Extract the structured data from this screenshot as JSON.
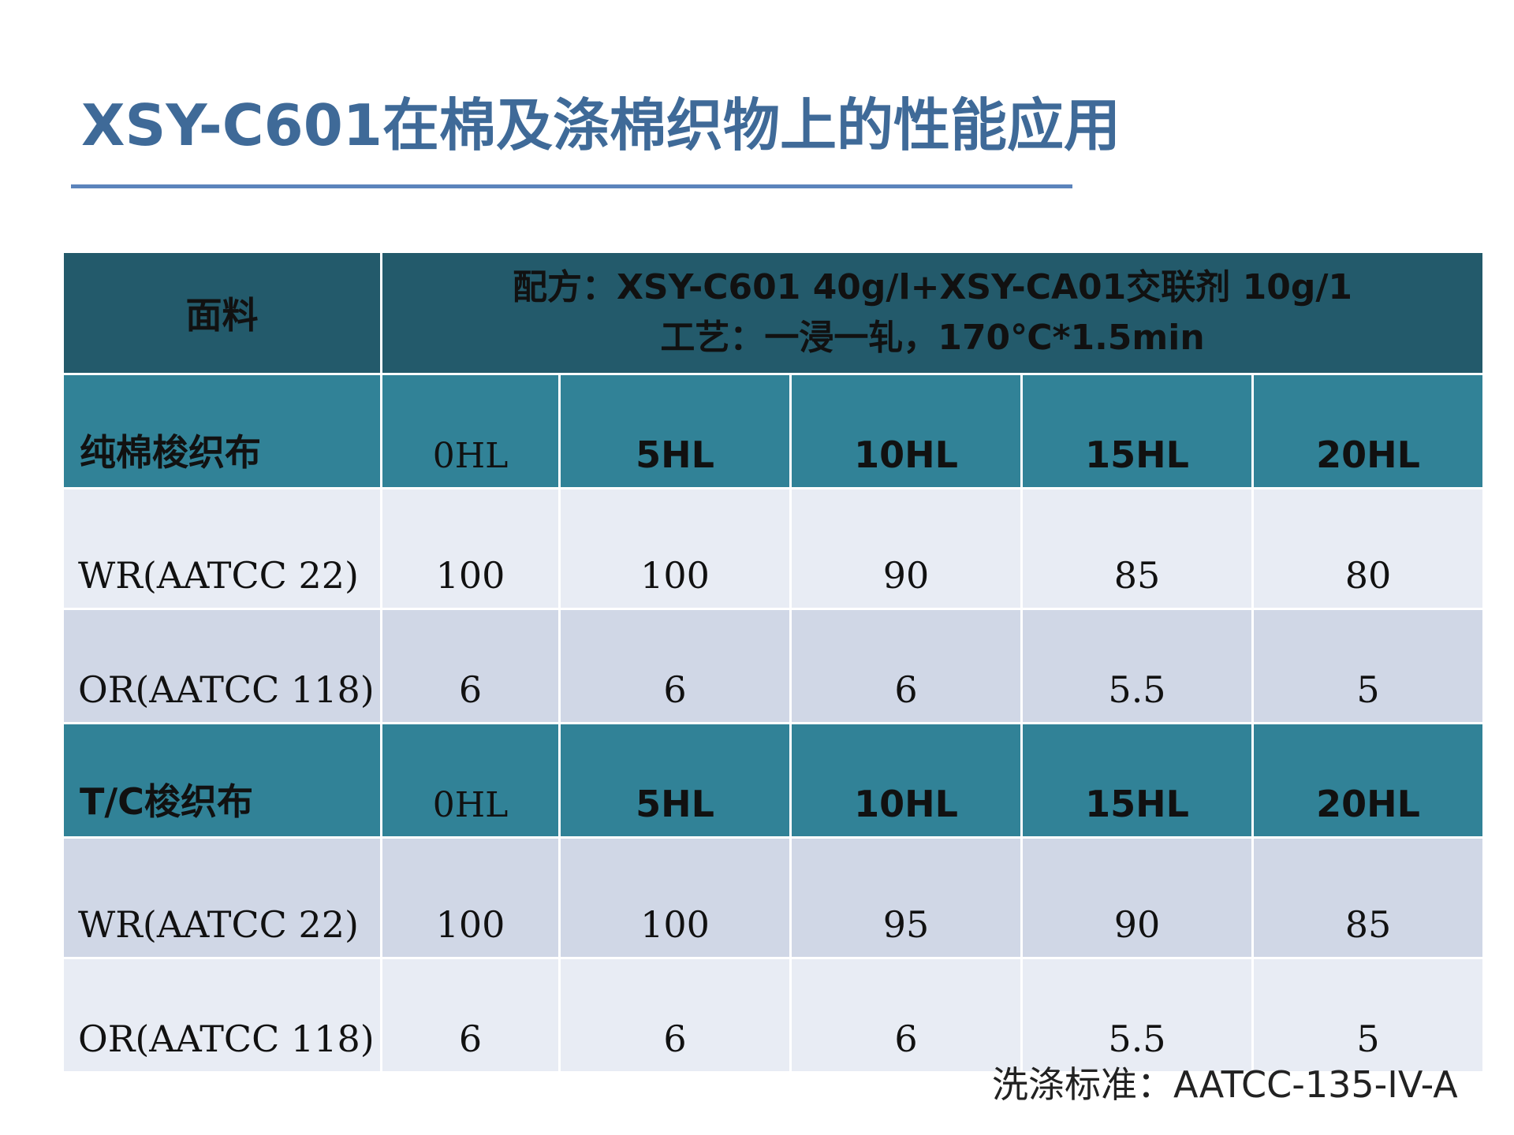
{
  "title": "XSY-C601在棉及涤棉织物上的性能应用",
  "table": {
    "fabric_header": "面料",
    "formula_line": "配方：XSY-C601  40g/l+XSY-CA01交联剂 10g/1",
    "process_line": "工艺：一浸一轧，170℃*1.5min",
    "wash_columns": [
      "0HL",
      "5HL",
      "10HL",
      "15HL",
      "20HL"
    ],
    "sections": [
      {
        "label": "纯棉梭织布",
        "rows": [
          {
            "label": "WR(AATCC 22)",
            "values": [
              "100",
              "100",
              "90",
              "85",
              "80"
            ]
          },
          {
            "label": "OR(AATCC 118)",
            "values": [
              "6",
              "6",
              "6",
              "5.5",
              "5"
            ]
          }
        ]
      },
      {
        "label": "T/C梭织布",
        "rows": [
          {
            "label": "WR(AATCC 22)",
            "values": [
              "100",
              "100",
              "95",
              "90",
              "85"
            ]
          },
          {
            "label": "OR(AATCC 118)",
            "values": [
              "6",
              "6",
              "6",
              "5.5",
              "5"
            ]
          }
        ]
      }
    ]
  },
  "footer": {
    "wash_standard": "洗涤标准：AATCC-135-IV-A"
  },
  "colors": {
    "title": "#3f6a98",
    "rule": "#5b84bc",
    "top_header_bg": "#235a6b",
    "section_header_bg": "#318297",
    "row_light": "#e8ecf4",
    "row_dark": "#d0d7e6"
  }
}
